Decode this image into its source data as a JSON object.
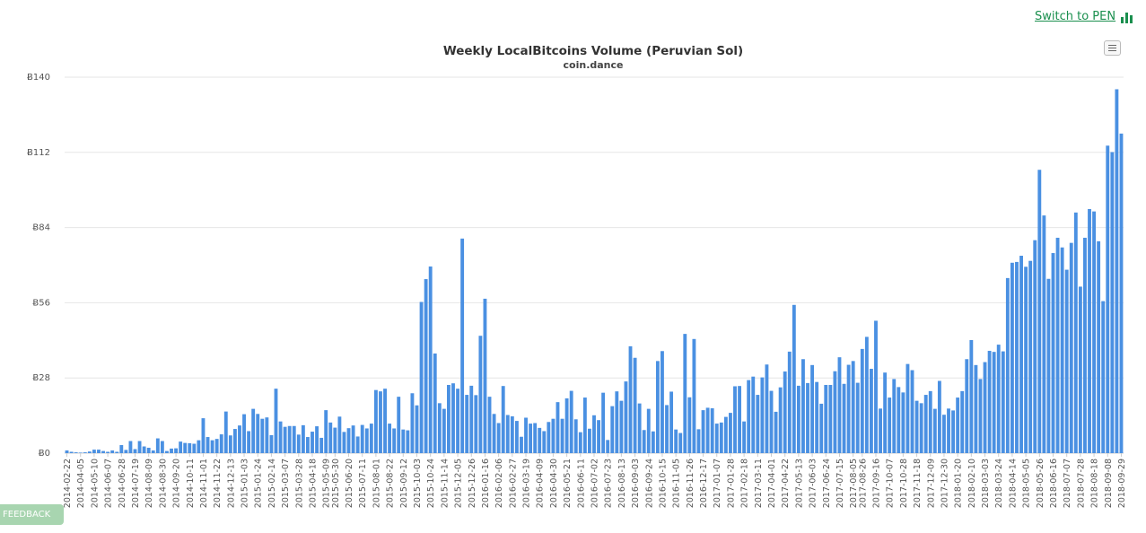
{
  "switch_link": {
    "label": "Switch to PEN"
  },
  "feedback": {
    "label": "FEEDBACK"
  },
  "colors": {
    "bar": "#4a90e2",
    "grid": "#e6e6e6",
    "link": "#1a8f4e"
  },
  "icons": {
    "chart_menu": "hamburger-menu-icon",
    "switch": "bar-chart-icon"
  },
  "chart_data": {
    "type": "bar",
    "title": "Weekly LocalBitcoins Volume (Peruvian Sol)",
    "subtitle": "coin.dance",
    "ylim": [
      0,
      140
    ],
    "yticks": [
      0,
      28,
      56,
      84,
      112,
      140
    ],
    "ytick_labels": [
      "Ƀ0",
      "Ƀ28",
      "Ƀ56",
      "Ƀ84",
      "Ƀ112",
      "Ƀ140"
    ],
    "grid": true,
    "legend": "none",
    "xtick_labels": [
      "2014-02-22",
      "2014-04-05",
      "2014-05-10",
      "2014-06-07",
      "2014-06-28",
      "2014-07-19",
      "2014-08-09",
      "2014-08-30",
      "2014-09-20",
      "2014-10-11",
      "2014-11-01",
      "2014-11-22",
      "2014-12-13",
      "2015-01-03",
      "2015-01-24",
      "2015-02-14",
      "2015-03-07",
      "2015-03-28",
      "2015-04-18",
      "2015-05-09",
      "2015-05-30",
      "2015-06-20",
      "2015-07-11",
      "2015-08-01",
      "2015-08-22",
      "2015-09-12",
      "2015-10-03",
      "2015-10-24",
      "2015-11-14",
      "2015-12-05",
      "2015-12-26",
      "2016-01-16",
      "2016-02-06",
      "2016-02-27",
      "2016-03-19",
      "2016-04-09",
      "2016-04-30",
      "2016-05-21",
      "2016-06-11",
      "2016-07-02",
      "2016-07-23",
      "2016-08-13",
      "2016-09-03",
      "2016-09-24",
      "2016-10-15",
      "2016-11-05",
      "2016-11-26",
      "2016-12-17",
      "2017-01-07",
      "2017-01-28",
      "2017-02-18",
      "2017-03-11",
      "2017-04-01",
      "2017-04-22",
      "2017-05-13",
      "2017-06-03",
      "2017-06-24",
      "2017-07-15",
      "2017-08-05",
      "2017-08-26",
      "2017-09-16",
      "2017-10-07",
      "2017-10-28",
      "2017-11-18",
      "2017-12-09",
      "2017-12-30",
      "2018-01-20",
      "2018-02-10",
      "2018-03-03",
      "2018-03-24",
      "2018-04-14",
      "2018-05-05",
      "2018-05-26",
      "2018-06-16",
      "2018-07-07",
      "2018-07-28",
      "2018-08-18",
      "2018-09-08",
      "2018-09-29"
    ],
    "values": [
      1.0,
      0.5,
      0.3,
      0.2,
      0.3,
      0.6,
      1.3,
      1.3,
      0.8,
      0.5,
      1.0,
      0.5,
      3.0,
      1.2,
      4.5,
      1.5,
      4.5,
      2.5,
      2.0,
      1.0,
      5.5,
      4.5,
      0.8,
      1.7,
      1.8,
      4.3,
      3.8,
      3.7,
      3.5,
      4.8,
      13.0,
      6.0,
      4.8,
      5.3,
      7.0,
      15.5,
      6.6,
      9.0,
      10.3,
      14.5,
      8.2,
      16.5,
      14.6,
      12.8,
      13.3,
      6.7,
      24.0,
      11.8,
      9.8,
      10.1,
      10.1,
      6.9,
      10.4,
      6.0,
      8.0,
      10.0,
      5.7,
      16.0,
      11.4,
      9.5,
      13.6,
      7.9,
      9.3,
      10.3,
      6.2,
      10.5,
      9.2,
      11.0,
      23.5,
      23.0,
      24.0,
      11.0,
      9.2,
      21.0,
      8.8,
      8.5,
      22.3,
      17.8,
      56.3,
      64.8,
      69.5,
      37.1,
      18.6,
      16.5,
      25.4,
      26.0,
      24.0,
      79.9,
      21.7,
      25.1,
      21.6,
      43.7,
      57.5,
      21.0,
      14.6,
      11.2,
      25.0,
      14.2,
      13.7,
      12.0,
      6.1,
      13.2,
      11.0,
      11.2,
      9.4,
      8.2,
      11.6,
      12.8,
      19.0,
      12.8,
      20.4,
      23.2,
      12.6,
      7.8,
      20.7,
      9.1,
      14.1,
      12.3,
      22.5,
      4.9,
      17.5,
      23.0,
      19.5,
      26.7,
      39.8,
      35.5,
      18.5,
      8.6,
      16.5,
      8.1,
      34.3,
      38.0,
      17.9,
      22.9,
      8.8,
      7.5,
      44.4,
      20.8,
      42.5,
      8.9,
      16.0,
      16.9,
      16.7,
      11.0,
      11.4,
      13.5,
      15.0,
      24.9,
      25.0,
      11.8,
      27.2,
      28.5,
      21.7,
      28.2,
      33.0,
      23.2,
      15.4,
      24.5,
      30.4,
      37.8,
      55.2,
      25.1,
      35.0,
      26.1,
      32.8,
      26.5,
      18.4,
      25.4,
      25.4,
      30.5,
      35.7,
      25.8,
      32.9,
      34.3,
      26.2,
      38.8,
      43.3,
      31.4,
      49.3,
      16.6,
      30.0,
      20.7,
      27.6,
      24.6,
      22.6,
      33.2,
      30.9,
      19.5,
      18.6,
      21.7,
      23.1,
      16.5,
      26.9,
      14.3,
      16.6,
      15.9,
      20.7,
      23.1,
      35.0,
      42.1,
      32.8,
      27.6,
      33.9,
      38.1,
      37.7,
      40.4,
      37.9,
      65.2,
      70.9,
      71.2,
      73.5,
      69.4,
      71.6,
      79.3,
      105.5,
      88.5,
      64.9,
      74.5,
      80.2,
      76.6,
      68.3,
      78.3,
      89.6,
      62.0,
      80.2,
      90.9,
      90.0,
      78.9,
      56.6,
      114.5,
      112.1,
      135.5,
      119.0
    ]
  }
}
